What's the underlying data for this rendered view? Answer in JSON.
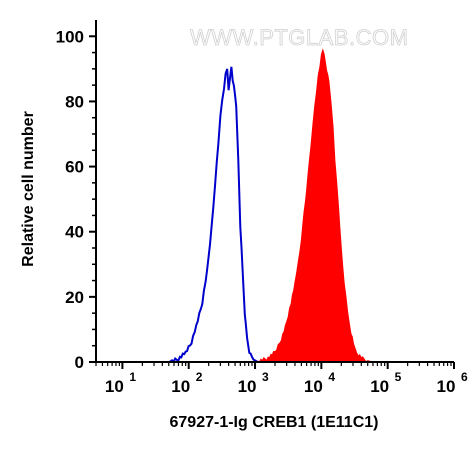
{
  "watermark": "WWW.PTGLAB.COM",
  "chart_data": {
    "type": "area",
    "xlabel": "67927-1-Ig CREB1 (1E11C1)",
    "ylabel": "Relative cell number",
    "xscale": "log",
    "xlim": [
      4,
      1000000
    ],
    "ylim": [
      0,
      105
    ],
    "x_tick_base": "10",
    "x_ticks": [
      {
        "value": 10,
        "exp": "1"
      },
      {
        "value": 100,
        "exp": "2"
      },
      {
        "value": 1000,
        "exp": "3"
      },
      {
        "value": 10000,
        "exp": "4"
      },
      {
        "value": 100000,
        "exp": "5"
      },
      {
        "value": 1000000,
        "exp": "6"
      }
    ],
    "y_ticks": [
      0,
      20,
      40,
      60,
      80,
      100
    ],
    "grid": false,
    "colors": {
      "control": "#0000cc",
      "sample": "#ff0000"
    },
    "series": [
      {
        "style": "outline",
        "color": "#0000cc",
        "x": [
          4,
          50,
          70,
          90,
          110,
          130,
          160,
          190,
          220,
          250,
          280,
          300,
          320,
          340,
          360,
          380,
          400,
          420,
          440,
          460,
          480,
          520,
          560,
          600,
          650,
          700,
          760,
          820,
          900,
          1000,
          1100,
          1300,
          2000,
          1000000
        ],
        "y": [
          0,
          0,
          1,
          3,
          6,
          11,
          18,
          28,
          41,
          55,
          67,
          76,
          80,
          84,
          88,
          90,
          84,
          87,
          91,
          86,
          85,
          78,
          62,
          42,
          28,
          15,
          7,
          3,
          1,
          0.5,
          0,
          0,
          0,
          0
        ]
      },
      {
        "style": "filled",
        "color": "#ff0000",
        "x": [
          4,
          1000,
          1500,
          2000,
          2500,
          3000,
          3500,
          4000,
          4500,
          5000,
          5500,
          6000,
          6500,
          7000,
          7500,
          8000,
          8500,
          9000,
          9500,
          10000,
          10500,
          11000,
          11500,
          12000,
          13000,
          14000,
          15000,
          16000,
          18000,
          20000,
          22000,
          25000,
          28000,
          32000,
          36000,
          42000,
          50000,
          60000,
          70000,
          1000000
        ],
        "y": [
          0,
          0,
          1,
          3,
          7,
          12,
          18,
          24,
          31,
          38,
          46,
          53,
          60,
          67,
          73,
          79,
          84,
          88,
          91,
          94,
          96,
          94,
          92,
          90,
          86,
          80,
          72,
          62,
          48,
          35,
          25,
          15,
          9,
          4,
          2,
          1,
          0.4,
          0,
          0,
          0
        ]
      }
    ]
  }
}
